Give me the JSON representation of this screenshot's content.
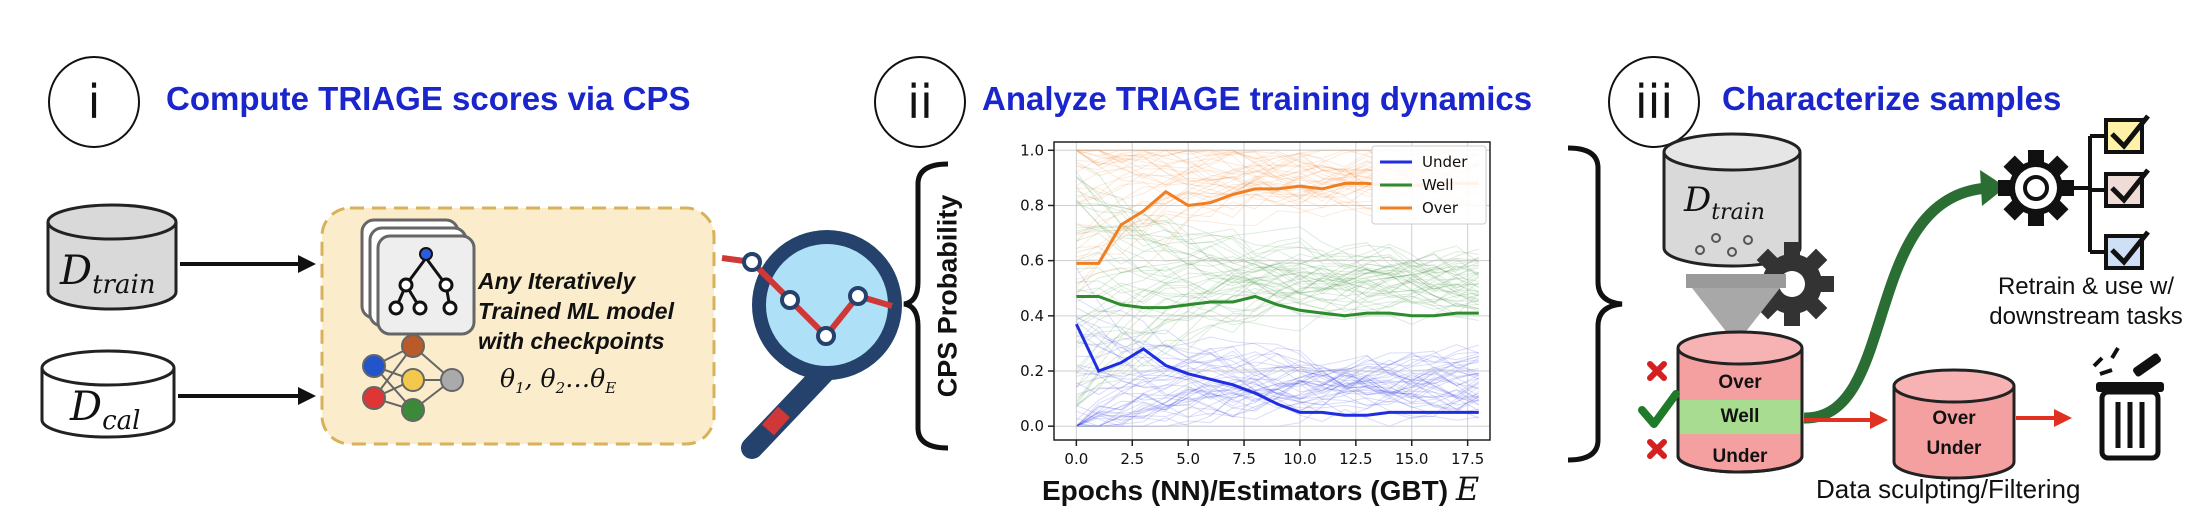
{
  "steps": [
    {
      "num": "i",
      "title": "Compute TRIAGE scores via CPS"
    },
    {
      "num": "ii",
      "title": "Analyze TRIAGE training dynamics"
    },
    {
      "num": "iii",
      "title": "Characterize samples"
    }
  ],
  "step1": {
    "d_train": {
      "main": "D",
      "sub": "train"
    },
    "d_cal": {
      "main": "D",
      "sub": "cal"
    },
    "model_text": [
      "Any Iteratively",
      "Trained ML model",
      "with checkpoints"
    ],
    "theta": {
      "main": "θ",
      "sub1": "1",
      "sub2": "2",
      "subE": "E",
      "sep": ", ",
      "dots": "…"
    }
  },
  "chart_data": {
    "type": "line",
    "xlabel": "Epochs (NN)/Estimators (GBT)",
    "xlabel_symbol": "E",
    "ylabel": "CPS Probability",
    "xlim": [
      -1,
      18.5
    ],
    "ylim": [
      -0.05,
      1.03
    ],
    "xticks": [
      "0.0",
      "2.5",
      "5.0",
      "7.5",
      "10.0",
      "12.5",
      "15.0",
      "17.5"
    ],
    "xtick_values": [
      0,
      2.5,
      5,
      7.5,
      10,
      12.5,
      15,
      17.5
    ],
    "yticks": [
      "0.0",
      "0.2",
      "0.4",
      "0.6",
      "0.8",
      "1.0"
    ],
    "ytick_values": [
      0,
      0.2,
      0.4,
      0.6,
      0.8,
      1.0
    ],
    "grid": true,
    "legend_position": "top-right",
    "x": [
      0,
      1,
      2,
      3,
      4,
      5,
      6,
      7,
      8,
      9,
      10,
      11,
      12,
      13,
      14,
      15,
      16,
      17,
      18
    ],
    "series": [
      {
        "name": "Under",
        "color": "#1f2ee0",
        "values": [
          0.37,
          0.2,
          0.23,
          0.28,
          0.22,
          0.19,
          0.17,
          0.15,
          0.12,
          0.08,
          0.05,
          0.05,
          0.04,
          0.04,
          0.05,
          0.05,
          0.05,
          0.05,
          0.05
        ]
      },
      {
        "name": "Well",
        "color": "#2e8b2e",
        "values": [
          0.47,
          0.47,
          0.44,
          0.43,
          0.43,
          0.44,
          0.45,
          0.45,
          0.47,
          0.44,
          0.42,
          0.41,
          0.4,
          0.41,
          0.41,
          0.4,
          0.4,
          0.41,
          0.41
        ]
      },
      {
        "name": "Over",
        "color": "#f07f22",
        "values": [
          0.59,
          0.59,
          0.73,
          0.78,
          0.85,
          0.8,
          0.81,
          0.84,
          0.86,
          0.86,
          0.87,
          0.86,
          0.88,
          0.88,
          0.87,
          0.87,
          0.88,
          0.88,
          0.88
        ]
      }
    ],
    "background_band_centers": {
      "Under": 0.15,
      "Well": 0.52,
      "Over": 0.91
    }
  },
  "step3": {
    "d_train": {
      "main": "D",
      "sub": "train"
    },
    "funnel_labels": [
      "Over",
      "Well",
      "Under"
    ],
    "filtered_labels": [
      "Over",
      "Under"
    ],
    "retrain_text": [
      "Retrain & use w/",
      "downstream tasks"
    ],
    "sculpt_text": "Data sculpting/Filtering",
    "colors": {
      "pink": "#f4a0a0",
      "green": "#a8dc90",
      "red_mark": "#d42020",
      "green_check": "#1f7a2a",
      "arrow_green": "#2a6e34",
      "arrow_red": "#e03020"
    }
  }
}
